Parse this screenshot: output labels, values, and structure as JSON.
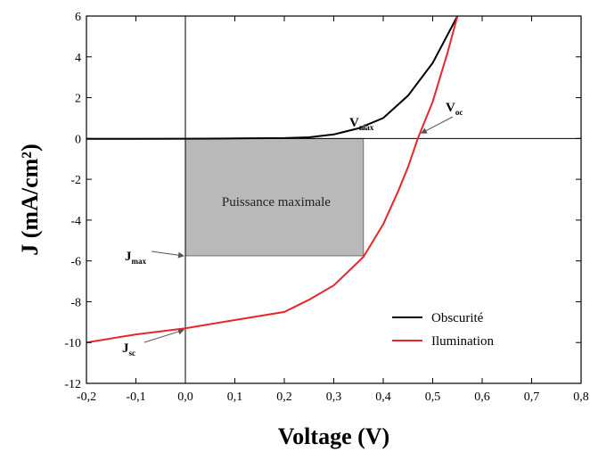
{
  "chart_data": {
    "type": "line",
    "xlabel": "Voltage (V)",
    "ylabel": "J (mA/cm²)",
    "xlim": [
      -0.2,
      0.8
    ],
    "ylim": [
      -12,
      6
    ],
    "xticks": [
      -0.2,
      -0.1,
      0.0,
      0.1,
      0.2,
      0.3,
      0.4,
      0.5,
      0.6,
      0.7,
      0.8
    ],
    "xtick_labels": [
      "-0,2",
      "-0,1",
      "0,0",
      "0,1",
      "0,2",
      "0,3",
      "0,4",
      "0,5",
      "0,6",
      "0,7",
      "0,8"
    ],
    "yticks": [
      -12,
      -10,
      -8,
      -6,
      -4,
      -2,
      0,
      2,
      4,
      6
    ],
    "ytick_labels": [
      "-12",
      "-10",
      "-8",
      "-6",
      "-4",
      "-2",
      "0",
      "2",
      "4",
      "6"
    ],
    "grid": false,
    "legend_position": "bottom-right",
    "series": [
      {
        "name": "Obscurité",
        "color": "#000000",
        "x": [
          -0.2,
          -0.1,
          0.0,
          0.1,
          0.2,
          0.25,
          0.3,
          0.35,
          0.4,
          0.45,
          0.5,
          0.55
        ],
        "y": [
          -0.02,
          -0.02,
          -0.01,
          0.0,
          0.02,
          0.06,
          0.2,
          0.5,
          1.0,
          2.1,
          3.7,
          6.0
        ]
      },
      {
        "name": "Ilumination",
        "color": "#e8262a",
        "x": [
          -0.2,
          -0.1,
          0.0,
          0.1,
          0.2,
          0.25,
          0.3,
          0.33,
          0.36,
          0.4,
          0.43,
          0.45,
          0.47,
          0.5,
          0.53,
          0.55
        ],
        "y": [
          -10.0,
          -9.6,
          -9.3,
          -8.9,
          -8.5,
          -7.9,
          -7.2,
          -6.5,
          -5.8,
          -4.2,
          -2.6,
          -1.4,
          0.0,
          1.8,
          4.2,
          6.0
        ]
      }
    ],
    "annotations": {
      "region_label": "Puissance maximale",
      "v_max_main": "V",
      "v_max_sub": "max",
      "v_oc_main": "V",
      "v_oc_sub": "oc",
      "j_max_main": "J",
      "j_max_sub": "max",
      "j_sc_main": "J",
      "j_sc_sub": "sc"
    },
    "max_power_point": {
      "v": 0.36,
      "j": -5.75
    },
    "v_oc": 0.47,
    "j_sc": -9.3,
    "region_color": "#b9b9b9"
  }
}
